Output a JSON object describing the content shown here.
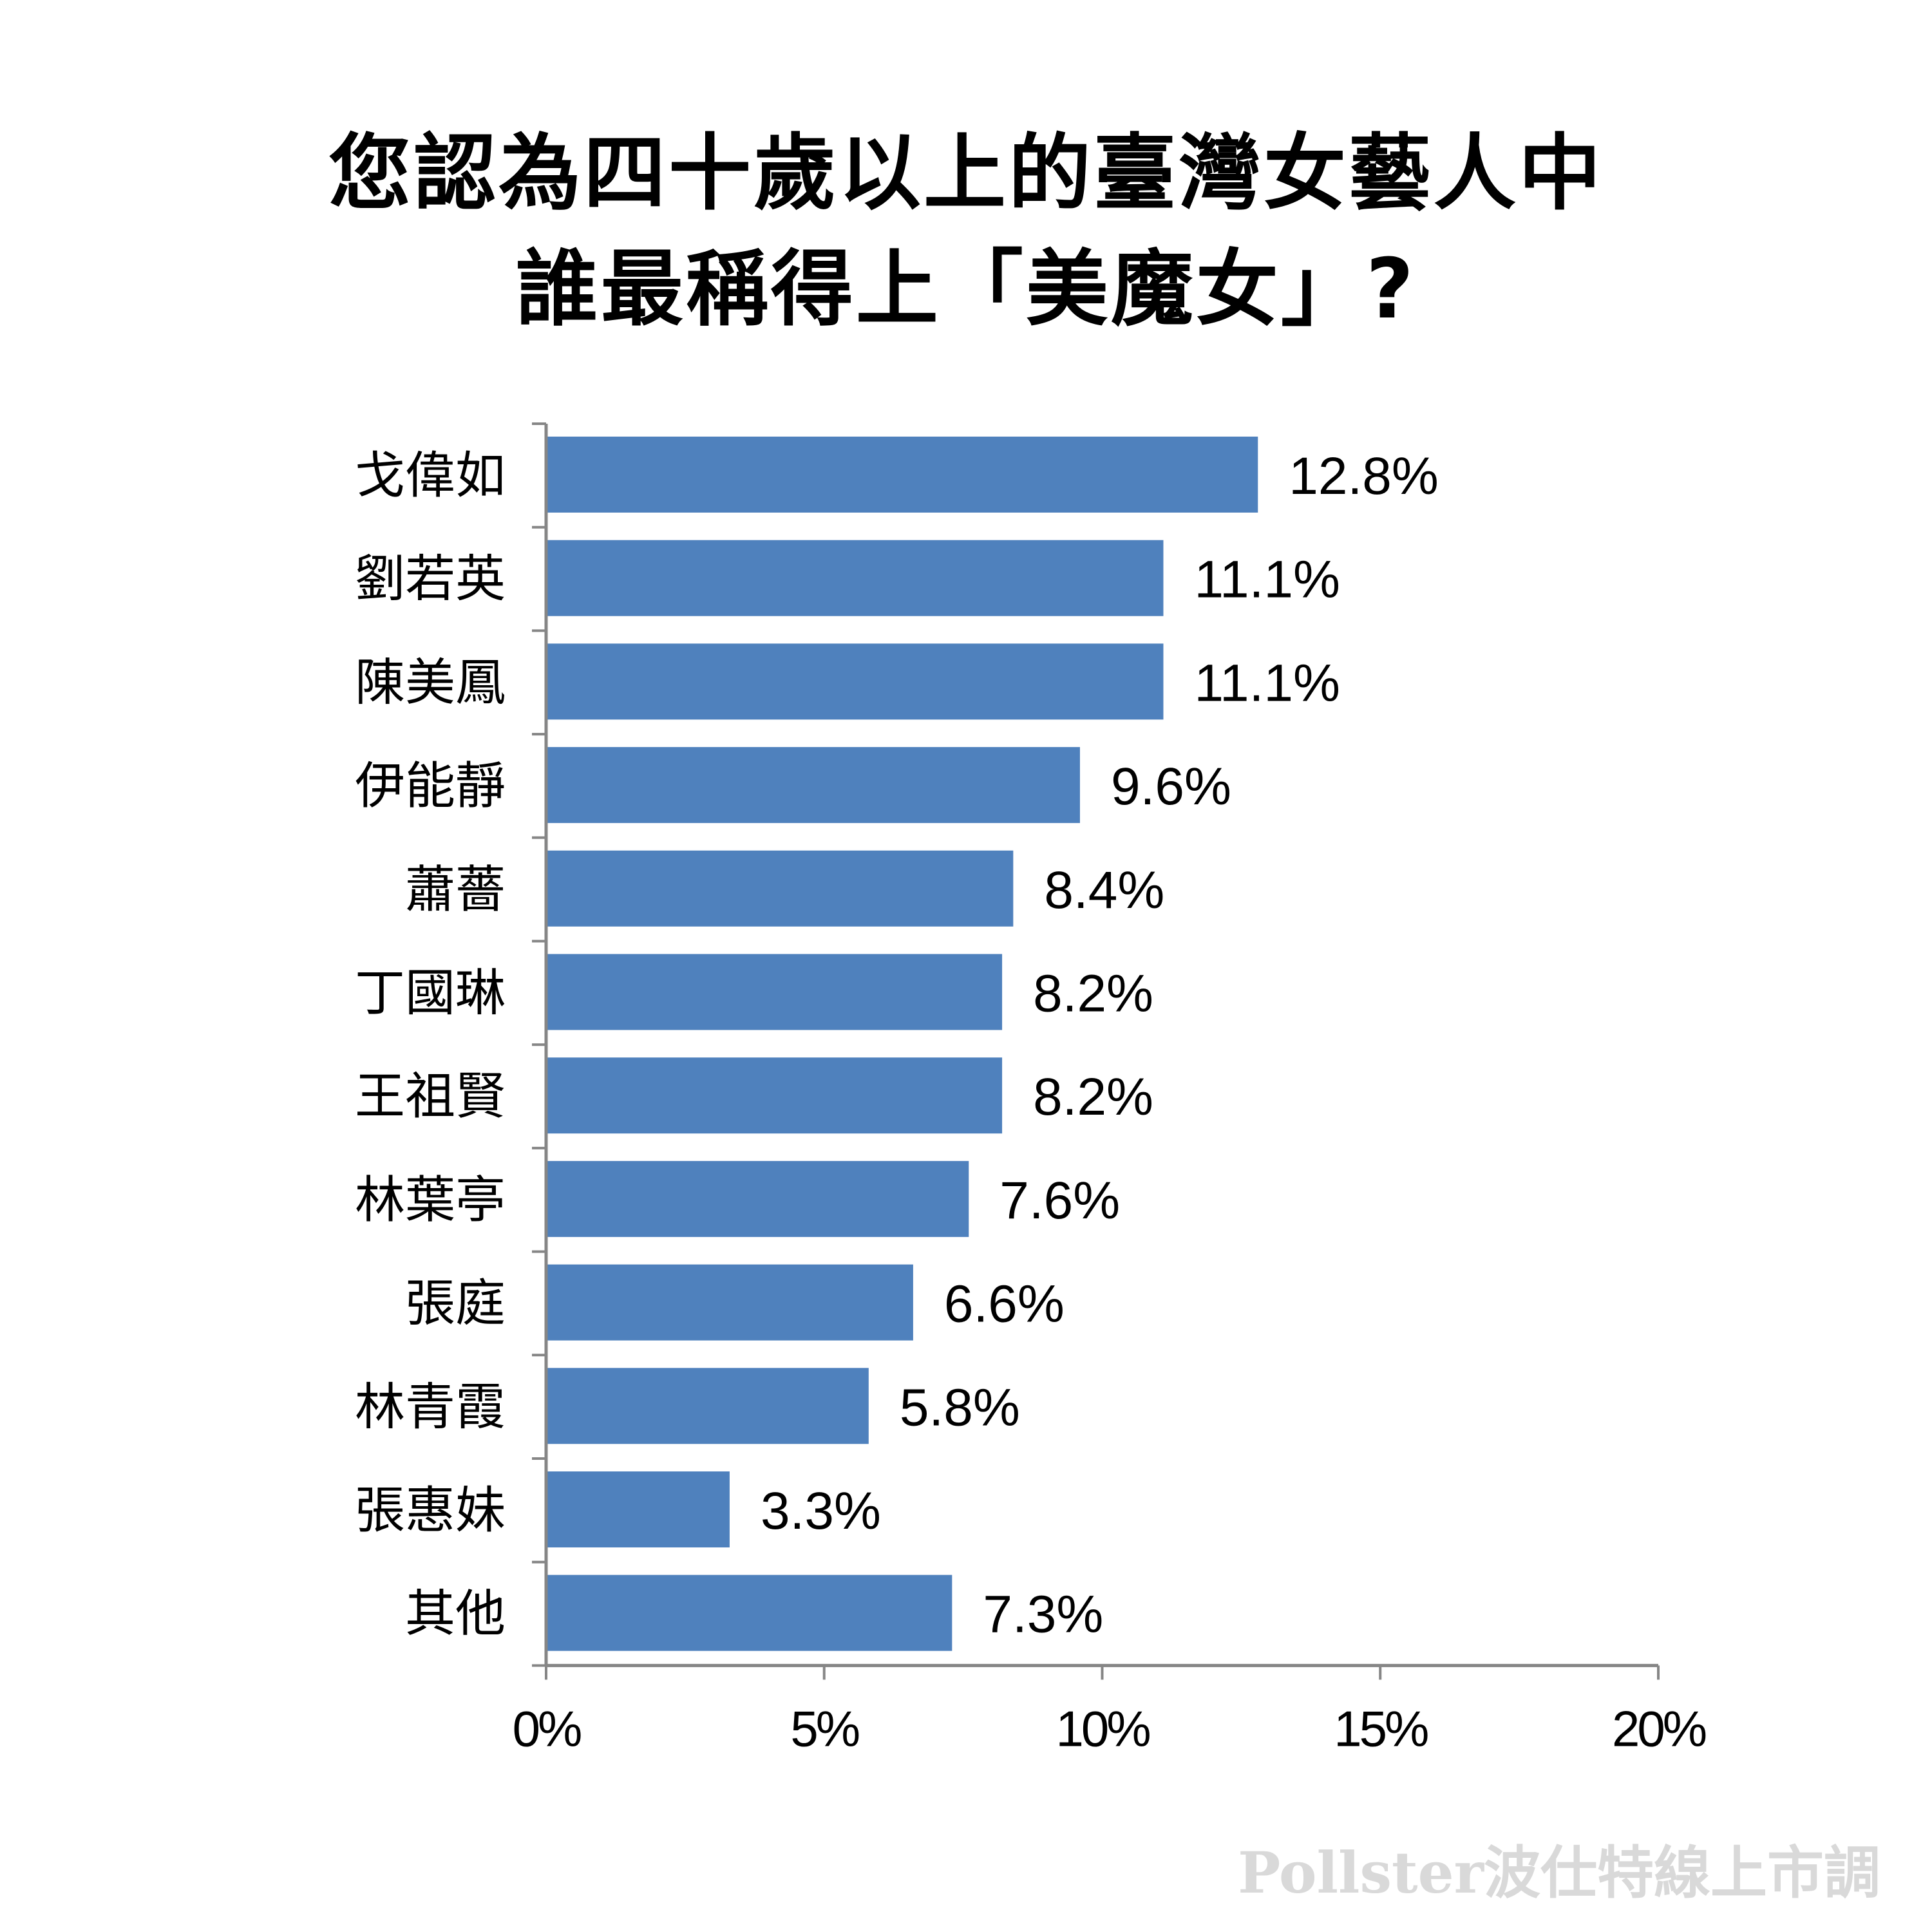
{
  "title": {
    "line1": "您認為四十歲以上的臺灣女藝人中",
    "line2": "誰最稱得上「美魔女」?"
  },
  "chart_data": {
    "type": "bar",
    "orientation": "horizontal",
    "categories": [
      "戈偉如",
      "劉若英",
      "陳美鳳",
      "伊能靜",
      "蕭薔",
      "丁國琳",
      "王祖賢",
      "林葉亭",
      "張庭",
      "林青霞",
      "張惠妹",
      "其他"
    ],
    "values": [
      12.8,
      11.1,
      11.1,
      9.6,
      8.4,
      8.2,
      8.2,
      7.6,
      6.6,
      5.8,
      3.3,
      7.3
    ],
    "value_labels": [
      "12.8%",
      "11.1%",
      "11.1%",
      "9.6%",
      "8.4%",
      "8.2%",
      "8.2%",
      "7.6%",
      "6.6%",
      "5.8%",
      "3.3%",
      "7.3%"
    ],
    "xlim": [
      0,
      20
    ],
    "xticks": [
      0,
      5,
      10,
      15,
      20
    ],
    "xtick_labels": [
      "0%",
      "5%",
      "10%",
      "15%",
      "20%"
    ],
    "grid": false,
    "bar_color": "#4f81bd",
    "axis_color": "#868686"
  },
  "watermark": "Pollster波仕特線上市調"
}
